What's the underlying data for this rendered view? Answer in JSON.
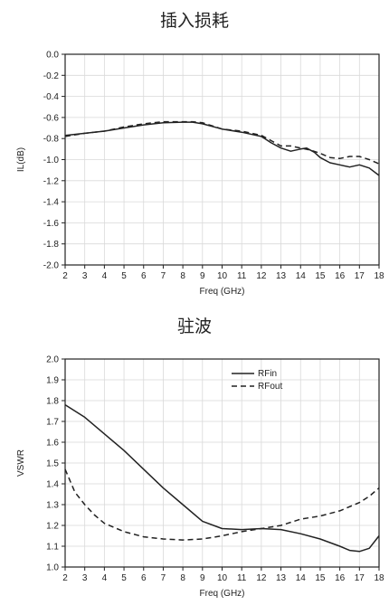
{
  "chart_data": [
    {
      "type": "line",
      "title": "插入损耗",
      "xlabel": "Freq (GHz)",
      "ylabel": "IL(dB)",
      "xlim": [
        2,
        18
      ],
      "ylim": [
        -2.0,
        0.0
      ],
      "xticks": [
        2,
        3,
        4,
        5,
        6,
        7,
        8,
        9,
        10,
        11,
        12,
        13,
        14,
        15,
        16,
        17,
        18
      ],
      "yticks": [
        0.0,
        -0.2,
        -0.4,
        -0.6,
        -0.8,
        -1.0,
        -1.2,
        -1.4,
        -1.6,
        -1.8,
        -2.0
      ],
      "grid": true,
      "series": [
        {
          "style": "solid",
          "x": [
            2,
            3,
            4,
            5,
            6,
            7,
            8,
            8.5,
            9,
            10,
            11,
            12,
            12.5,
            13,
            13.5,
            14,
            14.3,
            14.7,
            15,
            15.5,
            16,
            16.5,
            17,
            17.5,
            18
          ],
          "y": [
            -0.77,
            -0.75,
            -0.73,
            -0.7,
            -0.67,
            -0.65,
            -0.645,
            -0.645,
            -0.66,
            -0.71,
            -0.74,
            -0.78,
            -0.84,
            -0.89,
            -0.92,
            -0.9,
            -0.89,
            -0.93,
            -0.98,
            -1.03,
            -1.05,
            -1.07,
            -1.05,
            -1.08,
            -1.15
          ]
        },
        {
          "style": "dashed",
          "x": [
            2,
            3,
            4,
            5,
            6,
            7,
            8,
            8.5,
            9,
            10,
            11,
            12,
            12.5,
            13,
            13.5,
            14,
            14.5,
            15,
            15.5,
            16,
            16.5,
            17,
            17.5,
            18
          ],
          "y": [
            -0.78,
            -0.75,
            -0.73,
            -0.69,
            -0.66,
            -0.64,
            -0.64,
            -0.64,
            -0.65,
            -0.71,
            -0.73,
            -0.77,
            -0.82,
            -0.87,
            -0.87,
            -0.89,
            -0.91,
            -0.94,
            -0.98,
            -0.99,
            -0.97,
            -0.97,
            -1.0,
            -1.04
          ]
        }
      ]
    },
    {
      "type": "line",
      "title": "驻波",
      "xlabel": "Freq (GHz)",
      "ylabel": "VSWR",
      "xlim": [
        2,
        18
      ],
      "ylim": [
        1.0,
        2.0
      ],
      "xticks": [
        2,
        3,
        4,
        5,
        6,
        7,
        8,
        9,
        10,
        11,
        12,
        13,
        14,
        15,
        16,
        17,
        18
      ],
      "yticks": [
        2.0,
        1.9,
        1.8,
        1.7,
        1.6,
        1.5,
        1.4,
        1.3,
        1.2,
        1.1,
        1.0
      ],
      "grid": true,
      "legend": "top-right",
      "series": [
        {
          "name": "RFin",
          "style": "solid",
          "x": [
            2,
            3,
            4,
            5,
            6,
            7,
            8,
            9,
            10,
            11,
            12,
            13,
            14,
            15,
            16,
            16.5,
            17,
            17.5,
            18
          ],
          "y": [
            1.78,
            1.72,
            1.64,
            1.56,
            1.47,
            1.38,
            1.3,
            1.22,
            1.185,
            1.18,
            1.185,
            1.18,
            1.16,
            1.135,
            1.1,
            1.08,
            1.075,
            1.09,
            1.15
          ]
        },
        {
          "name": "RFout",
          "style": "dashed",
          "x": [
            2,
            2.5,
            3,
            3.5,
            4,
            5,
            6,
            7,
            8,
            9,
            10,
            11,
            12,
            13,
            14,
            15,
            16,
            17,
            17.5,
            18
          ],
          "y": [
            1.47,
            1.36,
            1.3,
            1.25,
            1.21,
            1.17,
            1.145,
            1.135,
            1.13,
            1.135,
            1.15,
            1.17,
            1.185,
            1.2,
            1.23,
            1.245,
            1.27,
            1.31,
            1.34,
            1.38
          ]
        }
      ]
    }
  ]
}
